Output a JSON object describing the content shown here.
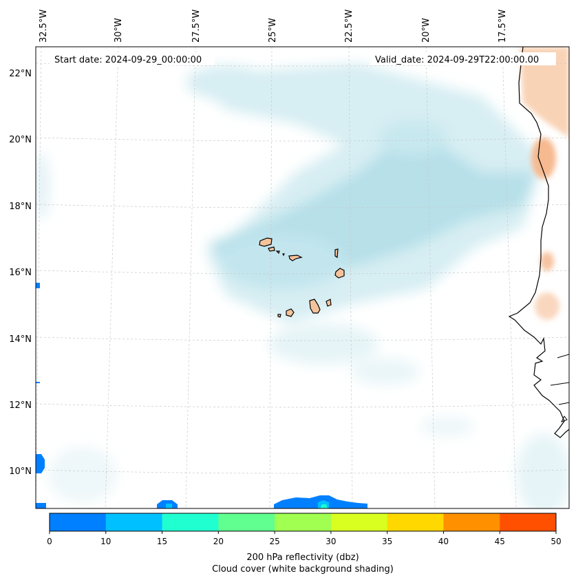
{
  "map": {
    "start_label": "Start date: 2024-09-29_00:00:00",
    "valid_label": "Valid_date: 2024-09-29T22:00:00.00",
    "lon_labels": [
      "32.5°W",
      "30°W",
      "27.5°W",
      "25°W",
      "22.5°W",
      "20°W",
      "17.5°W"
    ],
    "lat_labels": [
      "22°N",
      "20°N",
      "18°N",
      "16°N",
      "14°N",
      "12°N",
      "10°N"
    ]
  },
  "colorbar": {
    "label": "200 hPa reflectivity (dbz)",
    "sublabel": "Cloud cover (white background shading)",
    "ticks": [
      "0",
      "10",
      "15",
      "20",
      "25",
      "30",
      "35",
      "40",
      "45",
      "50"
    ],
    "colors": [
      "#0080ff",
      "#00c0ff",
      "#20ffd0",
      "#60ff90",
      "#a0ff50",
      "#d8ff20",
      "#ffd800",
      "#ff9000",
      "#ff5000"
    ]
  },
  "colors": {
    "cloud": "#a8dbe6",
    "land_warm": "#f6b990",
    "island_fill": "#f5c39b",
    "coast": "#000000",
    "grid": "#c8c8c8"
  }
}
